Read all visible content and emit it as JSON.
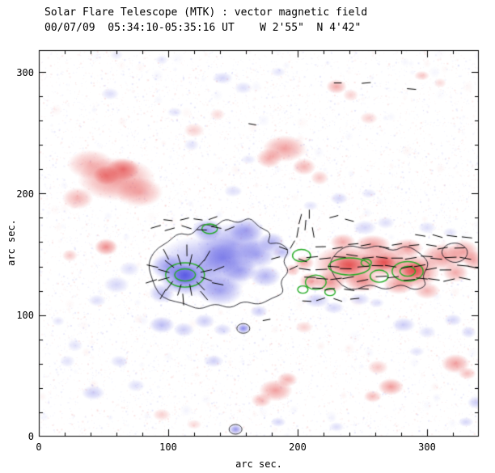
{
  "header": {
    "title_line1": "Solar Flare Telescope (MTK) : vector magnetic field",
    "title_line2": "00/07/09  05:34:10-05:35:16 UT    W 2'55\"  N 4'42\""
  },
  "axes": {
    "xlabel": "arc sec.",
    "ylabel": "arc sec.",
    "x_ticks": [
      "0",
      "100",
      "200",
      "300"
    ],
    "y_ticks": [
      "0",
      "100",
      "200",
      "300"
    ]
  },
  "chart_data": {
    "type": "heatmap",
    "title": "Solar Flare Telescope (MTK) : vector magnetic field",
    "subtitle": "00/07/09  05:34:10-05:35:16 UT    W 2'55\"  N 4'42\"",
    "xlabel": "arc sec.",
    "ylabel": "arc sec.",
    "xlim": [
      0,
      340
    ],
    "ylim": [
      0,
      318
    ],
    "x_tick_values": [
      0,
      100,
      200,
      300
    ],
    "y_tick_values": [
      0,
      100,
      200,
      300
    ],
    "colors": {
      "positive": "#e23e3e",
      "negative": "#5454e2",
      "contour": "#22aa22",
      "outline": "#111111",
      "frame": "#000000"
    },
    "blobs": [
      [
        60,
        212,
        30,
        18,
        "r",
        0.55
      ],
      [
        40,
        224,
        18,
        12,
        "r",
        0.4
      ],
      [
        78,
        201,
        18,
        12,
        "r",
        0.45
      ],
      [
        30,
        196,
        12,
        9,
        "r",
        0.4
      ],
      [
        65,
        220,
        13,
        9,
        "r",
        0.65
      ],
      [
        52,
        215,
        10,
        8,
        "r",
        0.6
      ],
      [
        52,
        156,
        9,
        7,
        "r",
        0.6
      ],
      [
        24,
        149,
        6,
        5,
        "r",
        0.3
      ],
      [
        120,
        252,
        8,
        6,
        "r",
        0.25
      ],
      [
        138,
        265,
        6,
        5,
        "r",
        0.2
      ],
      [
        190,
        237,
        17,
        11,
        "r",
        0.5
      ],
      [
        178,
        229,
        10,
        8,
        "r",
        0.45
      ],
      [
        205,
        222,
        9,
        7,
        "r",
        0.4
      ],
      [
        217,
        213,
        7,
        6,
        "r",
        0.3
      ],
      [
        230,
        288,
        8,
        6,
        "r",
        0.45
      ],
      [
        241,
        281,
        6,
        5,
        "r",
        0.25
      ],
      [
        296,
        297,
        6,
        4,
        "r",
        0.3
      ],
      [
        310,
        291,
        5,
        4,
        "r",
        0.2
      ],
      [
        255,
        262,
        7,
        5,
        "r",
        0.25
      ],
      [
        238,
        142,
        26,
        16,
        "r",
        0.6
      ],
      [
        266,
        144,
        20,
        13,
        "r",
        0.65
      ],
      [
        290,
        136,
        20,
        14,
        "r",
        0.7
      ],
      [
        312,
        148,
        16,
        11,
        "r",
        0.55
      ],
      [
        328,
        152,
        12,
        10,
        "r",
        0.5
      ],
      [
        225,
        127,
        12,
        9,
        "r",
        0.55
      ],
      [
        210,
        128,
        9,
        7,
        "r",
        0.5
      ],
      [
        250,
        128,
        14,
        9,
        "r",
        0.6
      ],
      [
        278,
        125,
        12,
        8,
        "r",
        0.5
      ],
      [
        300,
        120,
        10,
        7,
        "r",
        0.4
      ],
      [
        322,
        135,
        10,
        8,
        "r",
        0.45
      ],
      [
        336,
        145,
        8,
        8,
        "r",
        0.45
      ],
      [
        258,
        158,
        14,
        8,
        "r",
        0.5
      ],
      [
        285,
        155,
        12,
        8,
        "r",
        0.5
      ],
      [
        235,
        160,
        10,
        7,
        "r",
        0.45
      ],
      [
        205,
        143,
        8,
        6,
        "r",
        0.45
      ],
      [
        196,
        137,
        6,
        5,
        "r",
        0.35
      ],
      [
        240,
        141,
        12,
        8,
        "r",
        0.75
      ],
      [
        290,
        137,
        10,
        7,
        "r",
        0.8
      ],
      [
        267,
        143,
        9,
        6,
        "r",
        0.75
      ],
      [
        205,
        90,
        7,
        5,
        "r",
        0.25
      ],
      [
        262,
        57,
        8,
        6,
        "r",
        0.3
      ],
      [
        272,
        41,
        10,
        7,
        "r",
        0.5
      ],
      [
        258,
        33,
        7,
        5,
        "r",
        0.35
      ],
      [
        322,
        60,
        11,
        8,
        "r",
        0.5
      ],
      [
        331,
        52,
        7,
        5,
        "r",
        0.35
      ],
      [
        183,
        38,
        13,
        9,
        "r",
        0.5
      ],
      [
        172,
        30,
        8,
        6,
        "r",
        0.35
      ],
      [
        192,
        47,
        8,
        6,
        "r",
        0.4
      ],
      [
        95,
        18,
        7,
        5,
        "r",
        0.25
      ],
      [
        120,
        10,
        6,
        4,
        "r",
        0.2
      ],
      [
        128,
        140,
        40,
        26,
        "b",
        0.5
      ],
      [
        150,
        158,
        28,
        18,
        "b",
        0.5
      ],
      [
        112,
        130,
        18,
        13,
        "b",
        0.6
      ],
      [
        100,
        140,
        14,
        10,
        "b",
        0.5
      ],
      [
        140,
        120,
        18,
        12,
        "b",
        0.5
      ],
      [
        168,
        150,
        16,
        12,
        "b",
        0.5
      ],
      [
        160,
        170,
        14,
        10,
        "b",
        0.5
      ],
      [
        130,
        170,
        12,
        9,
        "b",
        0.55
      ],
      [
        113,
        133,
        10,
        8,
        "b",
        0.9
      ],
      [
        95,
        118,
        10,
        8,
        "b",
        0.4
      ],
      [
        180,
        160,
        10,
        8,
        "b",
        0.45
      ],
      [
        188,
        152,
        8,
        6,
        "b",
        0.4
      ],
      [
        175,
        132,
        12,
        9,
        "b",
        0.45
      ],
      [
        155,
        137,
        14,
        10,
        "b",
        0.5
      ],
      [
        142,
        147,
        16,
        12,
        "b",
        0.55
      ],
      [
        215,
        112,
        10,
        6,
        "b",
        0.3
      ],
      [
        228,
        106,
        8,
        5,
        "b",
        0.25
      ],
      [
        248,
        113,
        8,
        5,
        "b",
        0.25
      ],
      [
        261,
        110,
        6,
        4,
        "b",
        0.2
      ],
      [
        60,
        125,
        10,
        7,
        "b",
        0.25
      ],
      [
        45,
        112,
        7,
        5,
        "b",
        0.2
      ],
      [
        70,
        138,
        8,
        6,
        "b",
        0.2
      ],
      [
        95,
        92,
        10,
        7,
        "b",
        0.4
      ],
      [
        112,
        88,
        8,
        6,
        "b",
        0.3
      ],
      [
        128,
        95,
        8,
        6,
        "b",
        0.3
      ],
      [
        142,
        88,
        7,
        5,
        "b",
        0.25
      ],
      [
        158,
        89,
        5,
        4,
        "b",
        0.7
      ],
      [
        170,
        103,
        7,
        5,
        "b",
        0.3
      ],
      [
        135,
        62,
        8,
        5,
        "b",
        0.25
      ],
      [
        62,
        62,
        7,
        5,
        "b",
        0.2
      ],
      [
        42,
        36,
        9,
        6,
        "b",
        0.3
      ],
      [
        75,
        42,
        7,
        5,
        "b",
        0.2
      ],
      [
        28,
        75,
        6,
        5,
        "b",
        0.18
      ],
      [
        282,
        92,
        9,
        6,
        "b",
        0.3
      ],
      [
        300,
        86,
        7,
        5,
        "b",
        0.2
      ],
      [
        320,
        96,
        7,
        5,
        "b",
        0.25
      ],
      [
        332,
        86,
        6,
        5,
        "b",
        0.25
      ],
      [
        292,
        70,
        6,
        4,
        "b",
        0.18
      ],
      [
        252,
        172,
        9,
        6,
        "b",
        0.25
      ],
      [
        268,
        176,
        7,
        5,
        "b",
        0.2
      ],
      [
        300,
        172,
        7,
        5,
        "b",
        0.2
      ],
      [
        318,
        168,
        6,
        4,
        "b",
        0.18
      ],
      [
        232,
        196,
        7,
        5,
        "b",
        0.25
      ],
      [
        255,
        200,
        6,
        4,
        "b",
        0.18
      ],
      [
        210,
        190,
        6,
        4,
        "b",
        0.18
      ],
      [
        150,
        202,
        7,
        5,
        "b",
        0.2
      ],
      [
        118,
        240,
        6,
        5,
        "b",
        0.18
      ],
      [
        162,
        228,
        6,
        4,
        "b",
        0.16
      ],
      [
        142,
        295,
        8,
        5,
        "b",
        0.25
      ],
      [
        158,
        287,
        7,
        5,
        "b",
        0.2
      ],
      [
        55,
        282,
        7,
        5,
        "b",
        0.2
      ],
      [
        105,
        267,
        6,
        4,
        "b",
        0.18
      ],
      [
        22,
        62,
        6,
        5,
        "b",
        0.18
      ],
      [
        15,
        95,
        5,
        4,
        "b",
        0.16
      ],
      [
        185,
        300,
        6,
        4,
        "b",
        0.16
      ],
      [
        338,
        28,
        7,
        5,
        "b",
        0.3
      ],
      [
        330,
        12,
        6,
        4,
        "b",
        0.25
      ],
      [
        185,
        12,
        6,
        4,
        "b",
        0.25
      ],
      [
        152,
        6,
        5,
        4,
        "b",
        0.6
      ],
      [
        230,
        8,
        6,
        4,
        "b",
        0.2
      ],
      [
        95,
        310,
        5,
        4,
        "b",
        0.16
      ],
      [
        60,
        314,
        5,
        4,
        "b",
        0.14
      ]
    ],
    "green_contours": [
      [
        113,
        133,
        15,
        10
      ],
      [
        113,
        133,
        8,
        5
      ],
      [
        132,
        171,
        6,
        4
      ],
      [
        203,
        149,
        7,
        5
      ],
      [
        214,
        127,
        8,
        6
      ],
      [
        204,
        121,
        4,
        3
      ],
      [
        240,
        140,
        16,
        7
      ],
      [
        263,
        132,
        7,
        5
      ],
      [
        285,
        136,
        12,
        8
      ],
      [
        285,
        136,
        6,
        4
      ],
      [
        253,
        143,
        4,
        3
      ],
      [
        225,
        119,
        4,
        3
      ]
    ],
    "outlines": [
      [
        [
          88,
          128
        ],
        [
          84,
          142
        ],
        [
          90,
          154
        ],
        [
          100,
          160
        ],
        [
          108,
          168
        ],
        [
          118,
          165
        ],
        [
          126,
          176
        ],
        [
          136,
          172
        ],
        [
          144,
          180
        ],
        [
          154,
          175
        ],
        [
          163,
          181
        ],
        [
          170,
          172
        ],
        [
          180,
          168
        ],
        [
          176,
          158
        ],
        [
          186,
          160
        ],
        [
          194,
          153
        ],
        [
          188,
          144
        ],
        [
          194,
          136
        ],
        [
          186,
          128
        ],
        [
          190,
          118
        ],
        [
          180,
          114
        ],
        [
          170,
          108
        ],
        [
          158,
          112
        ],
        [
          148,
          105
        ],
        [
          136,
          110
        ],
        [
          124,
          104
        ],
        [
          112,
          110
        ],
        [
          100,
          112
        ],
        [
          92,
          118
        ]
      ],
      [
        [
          228,
          132
        ],
        [
          224,
          142
        ],
        [
          230,
          152
        ],
        [
          240,
          158
        ],
        [
          252,
          154
        ],
        [
          262,
          158
        ],
        [
          274,
          152
        ],
        [
          284,
          158
        ],
        [
          296,
          150
        ],
        [
          302,
          142
        ],
        [
          296,
          132
        ],
        [
          300,
          124
        ],
        [
          290,
          120
        ],
        [
          280,
          126
        ],
        [
          268,
          120
        ],
        [
          256,
          126
        ],
        [
          244,
          120
        ],
        [
          234,
          124
        ]
      ],
      [
        [
          310,
          150
        ],
        [
          314,
          158
        ],
        [
          324,
          160
        ],
        [
          332,
          154
        ],
        [
          330,
          146
        ],
        [
          320,
          142
        ]
      ]
    ],
    "outline_ellipses": [
      [
        158,
        89,
        5,
        4
      ],
      [
        152,
        6,
        5,
        4
      ]
    ],
    "vector_radial": [
      {
        "cx": 113,
        "cy": 133,
        "r": 17,
        "count": 12,
        "len": 9
      },
      {
        "cx": 113,
        "cy": 133,
        "r": 27,
        "count": 10,
        "len": 9
      }
    ],
    "vector_rows": [
      {
        "y": 171,
        "x0": 92,
        "x1": 152,
        "step": 11,
        "base": 0,
        "jit": 25,
        "len": 8
      },
      {
        "y": 179,
        "x0": 100,
        "x1": 146,
        "step": 12,
        "base": 0,
        "jit": 25,
        "len": 7
      },
      {
        "y": 121,
        "x0": 214,
        "x1": 252,
        "step": 12,
        "base": 0,
        "jit": 15,
        "len": 8
      },
      {
        "y": 130,
        "x0": 208,
        "x1": 336,
        "step": 11,
        "base": 0,
        "jit": 14,
        "len": 9
      },
      {
        "y": 139,
        "x0": 206,
        "x1": 338,
        "step": 11,
        "base": 0,
        "jit": 12,
        "len": 9
      },
      {
        "y": 148,
        "x0": 210,
        "x1": 338,
        "step": 11,
        "base": 0,
        "jit": 12,
        "len": 9
      },
      {
        "y": 157,
        "x0": 218,
        "x1": 334,
        "step": 12,
        "base": 0,
        "jit": 14,
        "len": 8
      },
      {
        "y": 165,
        "x0": 296,
        "x1": 334,
        "step": 12,
        "base": 0,
        "jit": 16,
        "len": 8
      },
      {
        "y": 113,
        "x0": 206,
        "x1": 250,
        "step": 13,
        "base": 0,
        "jit": 20,
        "len": 7
      }
    ],
    "vector_singles": [
      [
        200,
        168,
        80,
        8
      ],
      [
        206,
        174,
        85,
        8
      ],
      [
        212,
        168,
        100,
        8
      ],
      [
        202,
        179,
        75,
        8
      ],
      [
        209,
        183,
        90,
        7
      ],
      [
        196,
        158,
        60,
        7
      ],
      [
        183,
        147,
        15,
        7
      ],
      [
        189,
        155,
        -20,
        7
      ],
      [
        197,
        139,
        25,
        7
      ],
      [
        204,
        145,
        -20,
        7
      ],
      [
        228,
        181,
        15,
        7
      ],
      [
        240,
        178,
        -15,
        7
      ],
      [
        253,
        291,
        5,
        7
      ],
      [
        288,
        286,
        -5,
        7
      ],
      [
        231,
        291,
        0,
        6
      ],
      [
        165,
        257,
        -10,
        6
      ],
      [
        176,
        96,
        10,
        6
      ]
    ],
    "noise": {
      "speckle_count": 9500,
      "patch_count": 220,
      "seed": 20000709
    }
  }
}
